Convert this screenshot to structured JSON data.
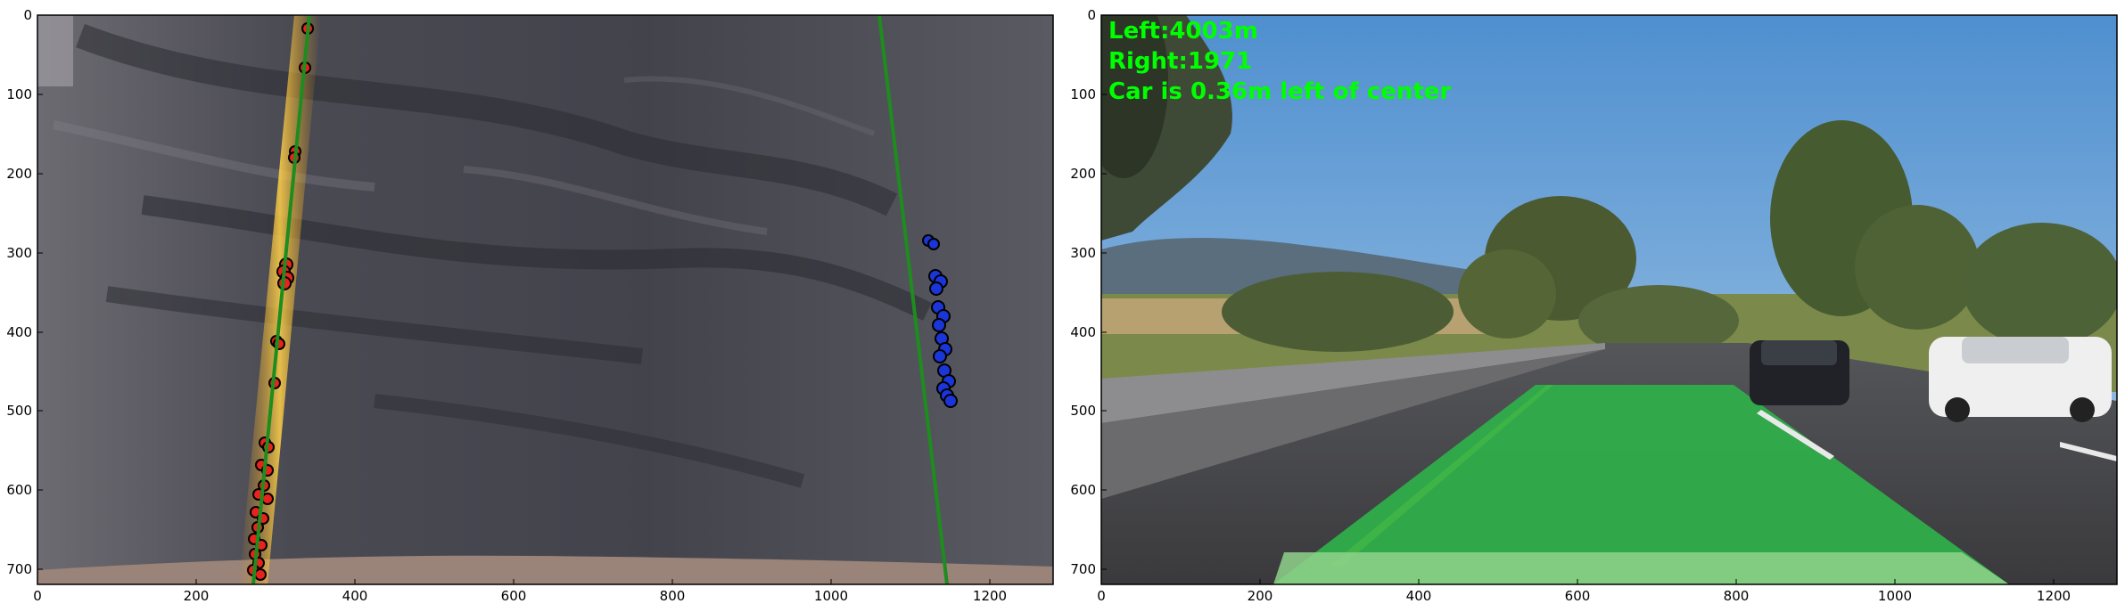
{
  "left_panel": {
    "x_ticks": [
      "0",
      "200",
      "400",
      "600",
      "800",
      "1000",
      "1200"
    ],
    "y_ticks": [
      "0",
      "100",
      "200",
      "300",
      "400",
      "500",
      "600",
      "700"
    ]
  },
  "right_panel": {
    "x_ticks": [
      "0",
      "200",
      "400",
      "600",
      "800",
      "1000",
      "1200"
    ],
    "y_ticks": [
      "0",
      "100",
      "200",
      "300",
      "400",
      "500",
      "600",
      "700"
    ],
    "overlay": {
      "left_curvature": "Left:4003m",
      "right_curvature": "Right:1971",
      "center_offset": "Car is 0.36m left of center"
    }
  },
  "colors": {
    "lane_fill": "#2fb14a",
    "fit_line": "#1e8c1e",
    "left_pixels": "#e8231b",
    "right_pixels": "#1a35d8",
    "overlay_text": "#00ff00"
  }
}
